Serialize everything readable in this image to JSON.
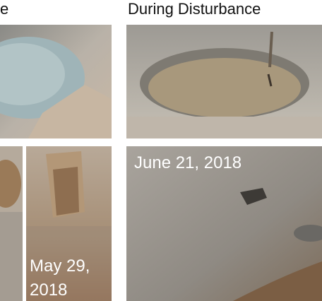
{
  "headers": [
    "e",
    "During Disturbance"
  ],
  "photos": [
    {
      "caption": [
        "June 21, 2018"
      ]
    },
    {
      "caption": [
        "May 29,",
        "2018"
      ]
    }
  ]
}
